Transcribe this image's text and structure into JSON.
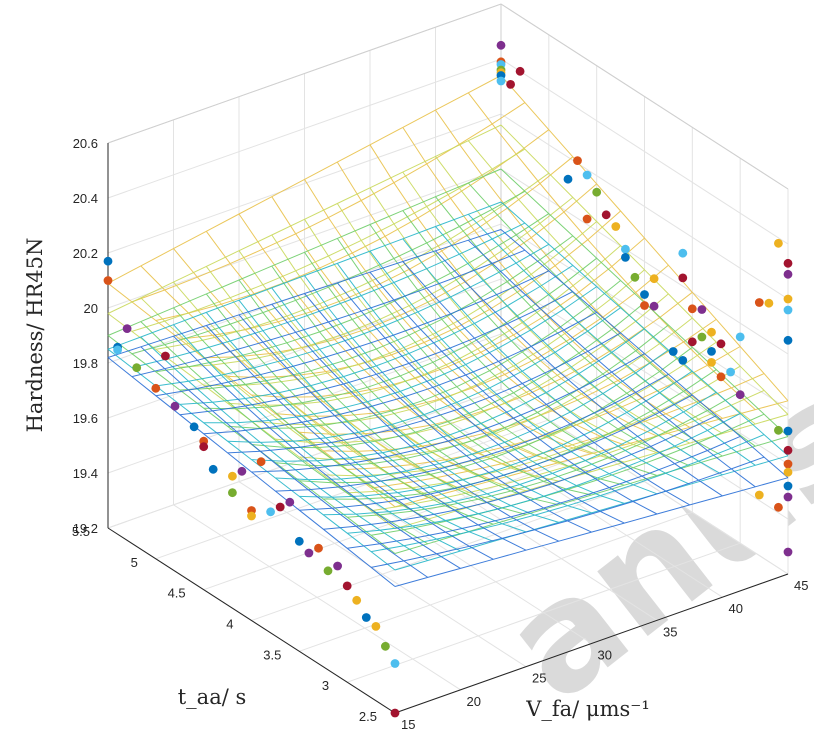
{
  "chart_data": {
    "type": "scatter3d-surface",
    "title": "",
    "xlabel": "V_fa/ μms⁻¹",
    "ylabel": "t_aa/ s",
    "zlabel": "Hardness/ HR45N",
    "xlim": [
      15,
      45
    ],
    "ylim": [
      2.5,
      5.5
    ],
    "zlim": [
      19.2,
      20.6
    ],
    "x_ticks": [
      "15",
      "20",
      "25",
      "30",
      "35",
      "40",
      "45"
    ],
    "y_ticks": [
      "2.5",
      "3",
      "3.5",
      "4",
      "4.5",
      "5",
      "5.5"
    ],
    "z_ticks": [
      "19.2",
      "19.4",
      "19.6",
      "19.8",
      "20",
      "20.2",
      "20.4",
      "20.6"
    ],
    "grid": true,
    "colormap": [
      "#2a6fd6",
      "#27b6c9",
      "#6fce6a",
      "#c9d95b",
      "#e9c24b"
    ],
    "surfaces": [
      {
        "levels": [
          20.09,
          19.95,
          19.83,
          20.34,
          19.87
        ]
      },
      {
        "levels": [
          19.98,
          19.87,
          19.78,
          20.16,
          19.76
        ]
      },
      {
        "levels": [
          19.9,
          19.78,
          19.7,
          20.0,
          19.67
        ]
      },
      {
        "levels": [
          19.85,
          19.72,
          19.63,
          19.88,
          19.62
        ]
      },
      {
        "levels": [
          19.82,
          19.66,
          19.55,
          19.78,
          19.6
        ]
      }
    ],
    "points": [
      {
        "x": 15,
        "y": 5.5,
        "z": 20.1,
        "c": "#d95319"
      },
      {
        "x": 15,
        "y": 5.5,
        "z": 20.17,
        "c": "#0072bd"
      },
      {
        "x": 15,
        "y": 5.3,
        "z": 19.97,
        "c": "#7e2f8e"
      },
      {
        "x": 15,
        "y": 5.4,
        "z": 19.88,
        "c": "#0072bd"
      },
      {
        "x": 15,
        "y": 5.4,
        "z": 19.87,
        "c": "#4dbeee"
      },
      {
        "x": 15,
        "y": 5.2,
        "z": 19.85,
        "c": "#77ac30"
      },
      {
        "x": 15,
        "y": 5.0,
        "z": 19.82,
        "c": "#d95319"
      },
      {
        "x": 15,
        "y": 4.8,
        "z": 19.8,
        "c": "#7e2f8e"
      },
      {
        "x": 15,
        "y": 4.9,
        "z": 19.96,
        "c": "#a2142f"
      },
      {
        "x": 15,
        "y": 4.5,
        "z": 19.74,
        "c": "#d95319"
      },
      {
        "x": 15,
        "y": 4.5,
        "z": 19.72,
        "c": "#a2142f"
      },
      {
        "x": 15,
        "y": 4.4,
        "z": 19.66,
        "c": "#0072bd"
      },
      {
        "x": 15,
        "y": 4.2,
        "z": 19.68,
        "c": "#edb120"
      },
      {
        "x": 15,
        "y": 4.2,
        "z": 19.62,
        "c": "#77ac30"
      },
      {
        "x": 15,
        "y": 4.0,
        "z": 19.6,
        "c": "#d95319"
      },
      {
        "x": 15,
        "y": 4.0,
        "z": 19.58,
        "c": "#edb120"
      },
      {
        "x": 15,
        "y": 4.1,
        "z": 19.72,
        "c": "#7e2f8e"
      },
      {
        "x": 15,
        "y": 3.8,
        "z": 19.64,
        "c": "#4dbeee"
      },
      {
        "x": 15,
        "y": 3.7,
        "z": 19.68,
        "c": "#a2142f"
      },
      {
        "x": 15,
        "y": 3.5,
        "z": 19.6,
        "c": "#0072bd"
      },
      {
        "x": 15,
        "y": 3.4,
        "z": 19.58,
        "c": "#7e2f8e"
      },
      {
        "x": 15,
        "y": 3.3,
        "z": 19.62,
        "c": "#d95319"
      },
      {
        "x": 15,
        "y": 3.2,
        "z": 19.56,
        "c": "#77ac30"
      },
      {
        "x": 15,
        "y": 3.0,
        "z": 19.55,
        "c": "#a2142f"
      },
      {
        "x": 15,
        "y": 2.9,
        "z": 19.52,
        "c": "#edb120"
      },
      {
        "x": 15,
        "y": 2.8,
        "z": 19.48,
        "c": "#0072bd"
      },
      {
        "x": 15,
        "y": 2.6,
        "z": 19.42,
        "c": "#77ac30"
      },
      {
        "x": 15,
        "y": 2.5,
        "z": 19.38,
        "c": "#4dbeee"
      },
      {
        "x": 15,
        "y": 2.5,
        "z": 19.2,
        "c": "#a2142f"
      },
      {
        "x": 15,
        "y": 3.9,
        "z": 19.8,
        "c": "#d95319"
      },
      {
        "x": 15,
        "y": 3.6,
        "z": 19.72,
        "c": "#7e2f8e"
      },
      {
        "x": 15,
        "y": 4.6,
        "z": 19.77,
        "c": "#0072bd"
      },
      {
        "x": 15,
        "y": 3.1,
        "z": 19.6,
        "c": "#7e2f8e"
      },
      {
        "x": 15,
        "y": 2.7,
        "z": 19.47,
        "c": "#edb120"
      },
      {
        "x": 45,
        "y": 5.5,
        "z": 20.45,
        "c": "#7e2f8e"
      },
      {
        "x": 45,
        "y": 5.5,
        "z": 20.39,
        "c": "#d95319"
      },
      {
        "x": 45,
        "y": 5.5,
        "z": 20.38,
        "c": "#4dbeee"
      },
      {
        "x": 45,
        "y": 5.5,
        "z": 20.36,
        "c": "#77ac30"
      },
      {
        "x": 45,
        "y": 5.5,
        "z": 20.35,
        "c": "#edb120"
      },
      {
        "x": 45,
        "y": 5.4,
        "z": 20.33,
        "c": "#a2142f"
      },
      {
        "x": 45,
        "y": 5.5,
        "z": 20.34,
        "c": "#0072bd"
      },
      {
        "x": 45,
        "y": 5.3,
        "z": 20.4,
        "c": "#a2142f"
      },
      {
        "x": 45,
        "y": 5.5,
        "z": 20.32,
        "c": "#4dbeee"
      },
      {
        "x": 45,
        "y": 4.7,
        "z": 20.21,
        "c": "#d95319"
      },
      {
        "x": 45,
        "y": 4.6,
        "z": 20.18,
        "c": "#4dbeee"
      },
      {
        "x": 45,
        "y": 4.5,
        "z": 20.14,
        "c": "#77ac30"
      },
      {
        "x": 45,
        "y": 4.4,
        "z": 20.08,
        "c": "#a2142f"
      },
      {
        "x": 45,
        "y": 4.3,
        "z": 20.06,
        "c": "#edb120"
      },
      {
        "x": 45,
        "y": 4.2,
        "z": 20.0,
        "c": "#4dbeee"
      },
      {
        "x": 45,
        "y": 4.2,
        "z": 19.97,
        "c": "#0072bd"
      },
      {
        "x": 45,
        "y": 4.1,
        "z": 19.92,
        "c": "#77ac30"
      },
      {
        "x": 45,
        "y": 4.0,
        "z": 19.88,
        "c": "#0072bd"
      },
      {
        "x": 45,
        "y": 3.9,
        "z": 19.86,
        "c": "#7e2f8e"
      },
      {
        "x": 45,
        "y": 4.0,
        "z": 19.84,
        "c": "#d95319"
      },
      {
        "x": 45,
        "y": 3.7,
        "z": 19.74,
        "c": "#0072bd"
      },
      {
        "x": 45,
        "y": 4.8,
        "z": 20.12,
        "c": "#0072bd"
      },
      {
        "x": 45,
        "y": 4.6,
        "z": 20.02,
        "c": "#d95319"
      },
      {
        "x": 45,
        "y": 3.6,
        "z": 19.73,
        "c": "#0072bd"
      },
      {
        "x": 45,
        "y": 2.5,
        "z": 20.29,
        "c": "#7e2f8e"
      },
      {
        "x": 45,
        "y": 2.5,
        "z": 20.33,
        "c": "#a2142f"
      },
      {
        "x": 45,
        "y": 2.6,
        "z": 20.38,
        "c": "#edb120"
      },
      {
        "x": 45,
        "y": 2.5,
        "z": 20.2,
        "c": "#edb120"
      },
      {
        "x": 45,
        "y": 2.5,
        "z": 20.16,
        "c": "#4dbeee"
      },
      {
        "x": 45,
        "y": 2.8,
        "z": 20.12,
        "c": "#d95319"
      },
      {
        "x": 45,
        "y": 2.7,
        "z": 20.14,
        "c": "#edb120"
      },
      {
        "x": 45,
        "y": 2.5,
        "z": 20.05,
        "c": "#0072bd"
      },
      {
        "x": 45,
        "y": 3.6,
        "z": 20.03,
        "c": "#a2142f"
      },
      {
        "x": 45,
        "y": 3.4,
        "z": 19.96,
        "c": "#7e2f8e"
      },
      {
        "x": 45,
        "y": 3.5,
        "z": 19.94,
        "c": "#d95319"
      },
      {
        "x": 45,
        "y": 3.3,
        "z": 19.9,
        "c": "#edb120"
      },
      {
        "x": 45,
        "y": 3.2,
        "z": 19.88,
        "c": "#a2142f"
      },
      {
        "x": 45,
        "y": 3.4,
        "z": 19.86,
        "c": "#77ac30"
      },
      {
        "x": 45,
        "y": 3.3,
        "z": 19.83,
        "c": "#0072bd"
      },
      {
        "x": 45,
        "y": 3.1,
        "z": 19.8,
        "c": "#4dbeee"
      },
      {
        "x": 45,
        "y": 3.3,
        "z": 19.79,
        "c": "#edb120"
      },
      {
        "x": 45,
        "y": 3.2,
        "z": 19.76,
        "c": "#d95319"
      },
      {
        "x": 45,
        "y": 3.0,
        "z": 19.74,
        "c": "#7e2f8e"
      },
      {
        "x": 45,
        "y": 3.5,
        "z": 19.82,
        "c": "#a2142f"
      },
      {
        "x": 45,
        "y": 2.5,
        "z": 19.72,
        "c": "#0072bd"
      },
      {
        "x": 45,
        "y": 2.5,
        "z": 19.65,
        "c": "#a2142f"
      },
      {
        "x": 45,
        "y": 2.5,
        "z": 19.6,
        "c": "#d95319"
      },
      {
        "x": 45,
        "y": 2.5,
        "z": 19.57,
        "c": "#edb120"
      },
      {
        "x": 45,
        "y": 2.5,
        "z": 19.52,
        "c": "#0072bd"
      },
      {
        "x": 45,
        "y": 2.5,
        "z": 19.48,
        "c": "#7e2f8e"
      },
      {
        "x": 45,
        "y": 2.6,
        "z": 19.42,
        "c": "#d95319"
      },
      {
        "x": 45,
        "y": 2.8,
        "z": 19.42,
        "c": "#edb120"
      },
      {
        "x": 45,
        "y": 2.5,
        "z": 19.28,
        "c": "#7e2f8e"
      },
      {
        "x": 45,
        "y": 2.6,
        "z": 19.7,
        "c": "#77ac30"
      },
      {
        "x": 45,
        "y": 3.0,
        "z": 19.95,
        "c": "#4dbeee"
      },
      {
        "x": 45,
        "y": 3.6,
        "z": 20.12,
        "c": "#4dbeee"
      },
      {
        "x": 45,
        "y": 3.9,
        "z": 19.96,
        "c": "#edb120"
      }
    ]
  }
}
